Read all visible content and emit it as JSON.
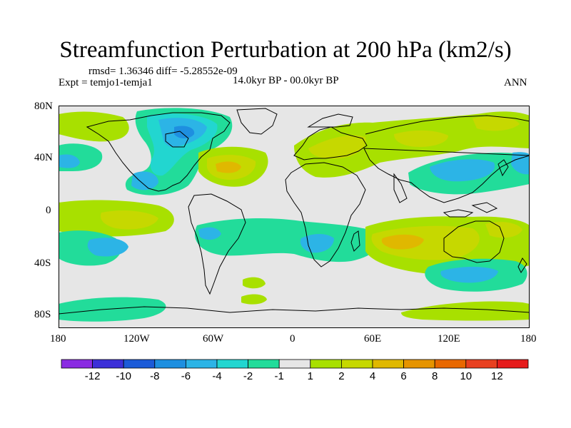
{
  "title": "Streamfunction Perturbation at 200 hPa (km2/s)",
  "stats": {
    "rmsd_text": "rmsd= 1.36346 diff= -5.28552e-09"
  },
  "experiment": "Expt = temjo1-temja1",
  "period": "14.0kyr BP - 00.0kyr BP",
  "season": "ANN",
  "axes": {
    "y_ticks": [
      "80N",
      "40N",
      "0",
      "40S",
      "80S"
    ],
    "x_ticks": [
      "180",
      "120W",
      "60W",
      "0",
      "60E",
      "120E",
      "180"
    ]
  },
  "colorbar": {
    "levels": [
      "-12",
      "-10",
      "-8",
      "-6",
      "-4",
      "-2",
      "-1",
      "1",
      "2",
      "4",
      "6",
      "8",
      "10",
      "12"
    ],
    "colors": [
      "#8a2be2",
      "#3c2fd8",
      "#1c5bd8",
      "#1e8fe0",
      "#2cb4e6",
      "#22d6d0",
      "#22dc9a",
      "#e6e6e6",
      "#a8e000",
      "#c6d800",
      "#e0b800",
      "#e69400",
      "#e86800",
      "#e84020",
      "#e61c1c"
    ]
  },
  "legend_colors": {
    "land_outline": "#000000",
    "neutral_fill": "#e6e6e6"
  }
}
